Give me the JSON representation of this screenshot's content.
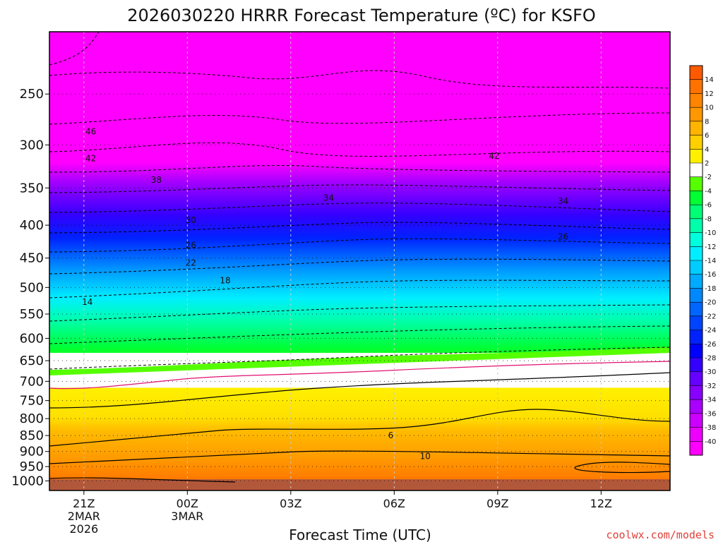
{
  "chart_data": {
    "type": "heatmap",
    "title": "2026030220 HRRR Forecast Temperature (ºC) for KSFO",
    "xlabel": "Forecast Time (UTC)",
    "credit": "coolwx.com/models",
    "x_ticks": [
      {
        "hour": 0,
        "lines": [
          "21Z",
          "2MAR",
          "2026"
        ]
      },
      {
        "hour": 3,
        "lines": [
          "00Z",
          "3MAR"
        ]
      },
      {
        "hour": 6,
        "lines": [
          "03Z"
        ]
      },
      {
        "hour": 9,
        "lines": [
          "06Z"
        ]
      },
      {
        "hour": 12,
        "lines": [
          "09Z"
        ]
      },
      {
        "hour": 15,
        "lines": [
          "12Z"
        ]
      }
    ],
    "x_range_hours": [
      -1,
      17
    ],
    "y_ticks": [
      250,
      300,
      350,
      400,
      450,
      500,
      550,
      600,
      650,
      700,
      750,
      800,
      850,
      900,
      950,
      1000
    ],
    "y_range_hpa": [
      200,
      1035
    ],
    "y_scale": "log-pressure",
    "colorbar_labels": [
      "14",
      "12",
      "10",
      "8",
      "6",
      "4",
      "2",
      "-2",
      "-4",
      "-6",
      "-8",
      "-10",
      "-12",
      "-14",
      "-16",
      "-18",
      "-20",
      "-22",
      "-24",
      "-26",
      "-28",
      "-30",
      "-32",
      "-34",
      "-36",
      "-38",
      "-40"
    ],
    "colorbar_colors": [
      "#ff5a00",
      "#ff7200",
      "#ff8400",
      "#ff9800",
      "#ffb400",
      "#ffd000",
      "#fff000",
      "#ffffff",
      "#55ff00",
      "#00ff33",
      "#00ff77",
      "#00ffaa",
      "#00ffdd",
      "#00eeff",
      "#00ccff",
      "#00aaff",
      "#0088ff",
      "#0066ff",
      "#0044ff",
      "#0022ff",
      "#0000ff",
      "#3300ff",
      "#6600ff",
      "#8800ff",
      "#aa00ff",
      "#cc00ff",
      "#ee00ff",
      "#ff00ff"
    ],
    "contour_labels": [
      {
        "text": "46",
        "hour": 0.2,
        "hpa": 286
      },
      {
        "text": "42",
        "hour": 0.2,
        "hpa": 315
      },
      {
        "text": "38",
        "hour": 2.1,
        "hpa": 340
      },
      {
        "text": "30",
        "hour": 3.1,
        "hpa": 393
      },
      {
        "text": "26",
        "hour": 3.1,
        "hpa": 430
      },
      {
        "text": "22",
        "hour": 3.1,
        "hpa": 458
      },
      {
        "text": "18",
        "hour": 4.1,
        "hpa": 488
      },
      {
        "text": "14",
        "hour": 0.1,
        "hpa": 527
      },
      {
        "text": "34",
        "hour": 7.1,
        "hpa": 363
      },
      {
        "text": "42",
        "hour": 11.9,
        "hpa": 312
      },
      {
        "text": "34",
        "hour": 13.9,
        "hpa": 367
      },
      {
        "text": "26",
        "hour": 13.9,
        "hpa": 417
      },
      {
        "text": "6",
        "hour": 8.9,
        "hpa": 850
      },
      {
        "text": "10",
        "hour": 9.9,
        "hpa": 915
      }
    ],
    "colors": {
      "land": "#b2583a",
      "warm_line": "#e01070"
    }
  }
}
